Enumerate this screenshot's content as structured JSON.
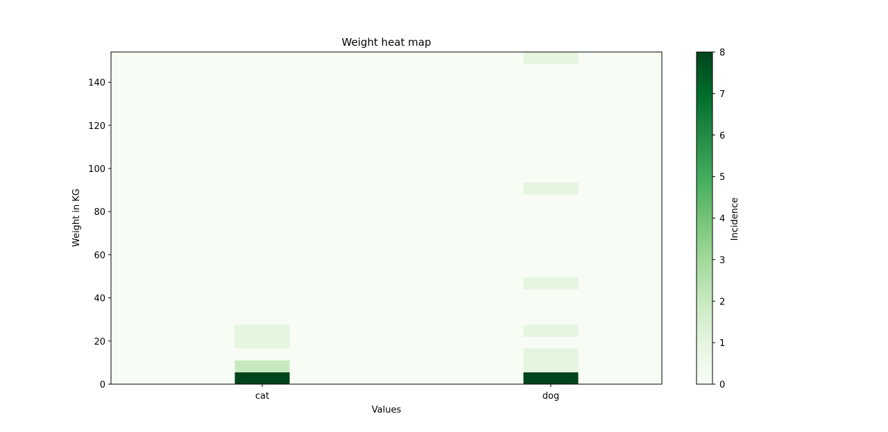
{
  "chart_data": {
    "type": "heatmap",
    "title": "Weight heat map",
    "xlabel": "Values",
    "ylabel": "Weight in KG",
    "colorbar_label": "Incidence",
    "categories": [
      "cat",
      "dog"
    ],
    "ylim": [
      0,
      154
    ],
    "yticks": [
      0,
      20,
      40,
      60,
      80,
      100,
      120,
      140
    ],
    "clim": [
      0,
      8
    ],
    "colorbar_ticks": [
      0,
      1,
      2,
      3,
      4,
      5,
      6,
      7,
      8
    ],
    "colormap": "Greens",
    "cells": [
      {
        "category": "cat",
        "y0": 0,
        "y1": 5.5,
        "value": 8
      },
      {
        "category": "cat",
        "y0": 5.5,
        "y1": 11,
        "value": 2
      },
      {
        "category": "cat",
        "y0": 16.5,
        "y1": 27.5,
        "value": 1
      },
      {
        "category": "dog",
        "y0": 0,
        "y1": 5.5,
        "value": 8
      },
      {
        "category": "dog",
        "y0": 5.5,
        "y1": 16.5,
        "value": 1
      },
      {
        "category": "dog",
        "y0": 22,
        "y1": 27.5,
        "value": 1
      },
      {
        "category": "dog",
        "y0": 44,
        "y1": 49.5,
        "value": 1
      },
      {
        "category": "dog",
        "y0": 88,
        "y1": 93.5,
        "value": 1
      },
      {
        "category": "dog",
        "y0": 148.5,
        "y1": 154,
        "value": 1
      }
    ]
  }
}
